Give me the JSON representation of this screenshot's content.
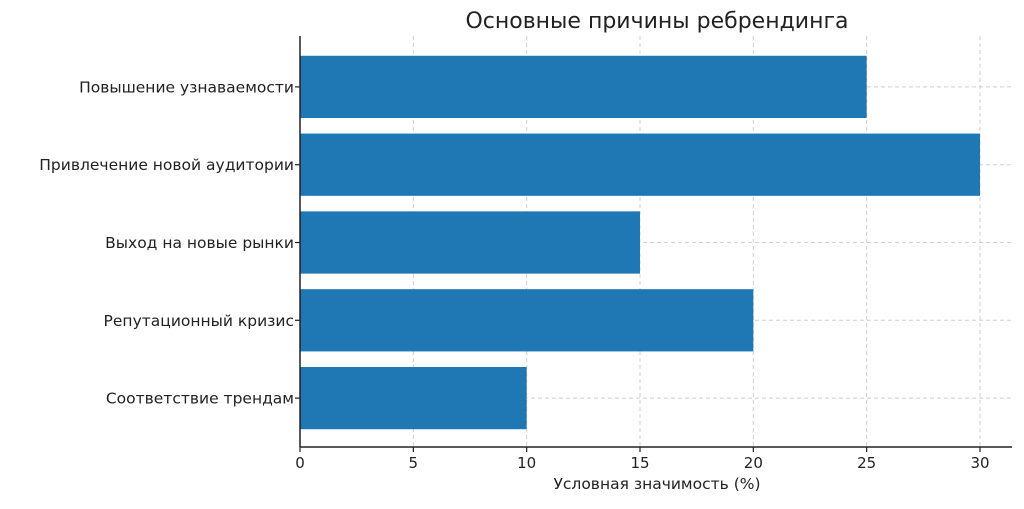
{
  "chart_data": {
    "type": "bar",
    "orientation": "horizontal",
    "title": "Основные причины ребрендинга",
    "xlabel": "Условная значимость (%)",
    "ylabel": "",
    "categories": [
      "Повышение узнаваемости",
      "Привлечение новой аудитории",
      "Выход на новые рынки",
      "Репутационный кризис",
      "Соответствие трендам"
    ],
    "values": [
      25,
      30,
      15,
      20,
      10
    ],
    "xlim": [
      0,
      30
    ],
    "xticks": [
      0,
      5,
      10,
      15,
      20,
      25,
      30
    ],
    "grid": true,
    "bar_color": "#1f77b4"
  }
}
